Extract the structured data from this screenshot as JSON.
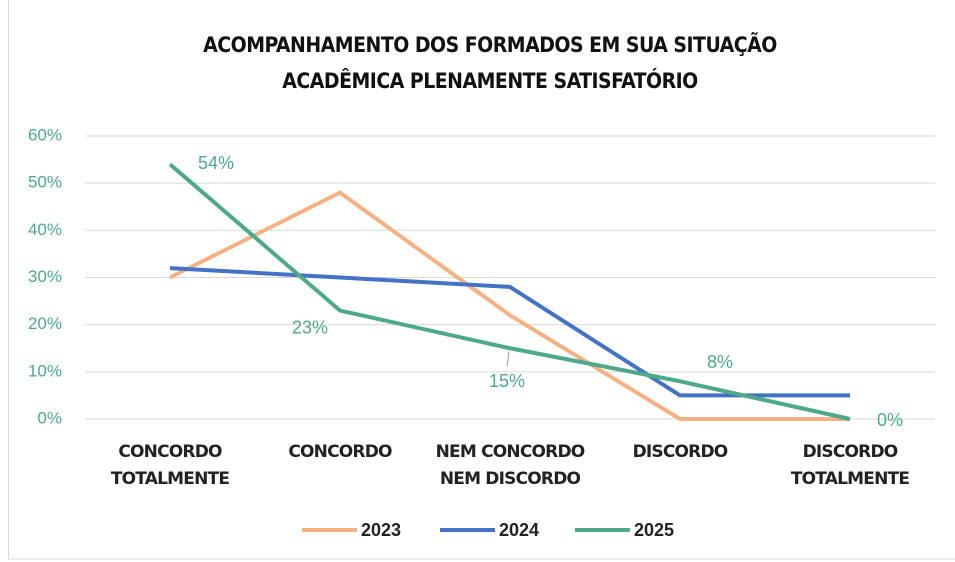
{
  "chart_data": {
    "type": "line",
    "title": [
      "ACOMPANHAMENTO DOS FORMADOS EM SUA SITUAÇÃO",
      "ACADÊMICA PLENAMENTE SATISFATÓRIO"
    ],
    "categories": [
      [
        "CONCORDO",
        "TOTALMENTE"
      ],
      [
        "CONCORDO"
      ],
      [
        "NEM CONCORDO",
        "NEM DISCORDO"
      ],
      [
        "DISCORDO"
      ],
      [
        "DISCORDO",
        "TOTALMENTE"
      ]
    ],
    "series": [
      {
        "name": "2023",
        "color": "#f4b183",
        "values": [
          30,
          48,
          22,
          0,
          0
        ]
      },
      {
        "name": "2024",
        "color": "#4472c4",
        "values": [
          32,
          30,
          28,
          5,
          5
        ]
      },
      {
        "name": "2025",
        "color": "#4ea88a",
        "values": [
          54,
          23,
          15,
          8,
          0
        ],
        "value_labels": [
          "54%",
          "23%",
          "15%",
          "8%",
          "0%"
        ]
      }
    ],
    "ylim": [
      0,
      60
    ],
    "yticks": [
      {
        "value": 0,
        "label": "0%"
      },
      {
        "value": 10,
        "label": "10%"
      },
      {
        "value": 20,
        "label": "20%"
      },
      {
        "value": 30,
        "label": "30%"
      },
      {
        "value": 40,
        "label": "40%"
      },
      {
        "value": 50,
        "label": "50%"
      },
      {
        "value": 60,
        "label": "60%"
      }
    ],
    "grid": true,
    "legend": "bottom"
  }
}
